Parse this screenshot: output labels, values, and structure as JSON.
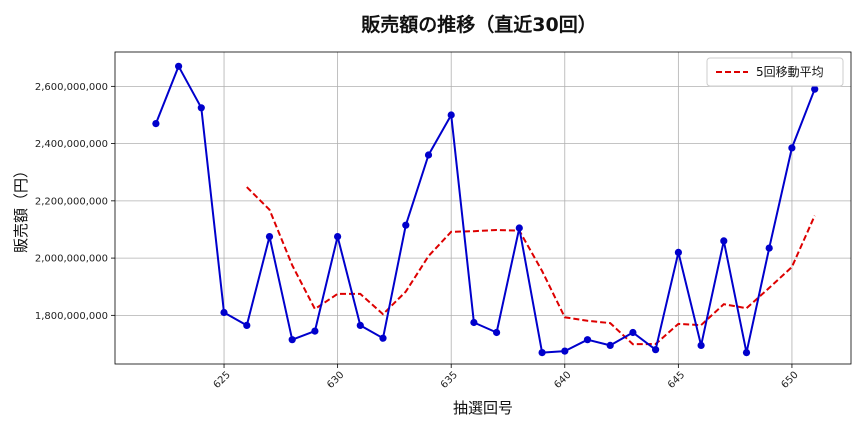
{
  "chart_data": {
    "type": "line",
    "title": "販売額の推移（直近30回）",
    "xlabel": "抽選回号",
    "ylabel": "販売額（円）",
    "xlim": [
      620.2,
      652.6
    ],
    "ylim": [
      1630000000,
      2720000000
    ],
    "x_ticks": [
      625,
      630,
      635,
      640,
      645,
      650
    ],
    "y_ticks": [
      1800000000,
      2000000000,
      2200000000,
      2400000000,
      2600000000
    ],
    "y_tick_labels": [
      "1,800,000,000",
      "2,000,000,000",
      "2,200,000,000",
      "2,400,000,000",
      "2,600,000,000"
    ],
    "grid": true,
    "legend_position": "top-right",
    "series": [
      {
        "color": "#0000cc",
        "style": "solid-with-markers",
        "x": [
          622,
          623,
          624,
          625,
          626,
          627,
          628,
          629,
          630,
          631,
          632,
          633,
          634,
          635,
          636,
          637,
          638,
          639,
          640,
          641,
          642,
          643,
          644,
          645,
          646,
          647,
          648,
          649,
          650,
          651
        ],
        "values": [
          2470000000,
          2670000000,
          2525000000,
          1810000000,
          1765000000,
          2075000000,
          1715000000,
          1745000000,
          2075000000,
          1765000000,
          1720000000,
          2115000000,
          2360000000,
          2500000000,
          1775000000,
          1740000000,
          2105000000,
          1670000000,
          1675000000,
          1715000000,
          1695000000,
          1740000000,
          1680000000,
          2020000000,
          1695000000,
          2060000000,
          1670000000,
          2035000000,
          2385000000,
          2590000000
        ]
      },
      {
        "name": "5回移動平均",
        "color": "#dd0000",
        "style": "dashed",
        "x": [
          626,
          627,
          628,
          629,
          630,
          631,
          632,
          633,
          634,
          635,
          636,
          637,
          638,
          639,
          640,
          641,
          642,
          643,
          644,
          645,
          646,
          647,
          648,
          649,
          650,
          651
        ],
        "values": [
          2248000000,
          2169000000,
          1975000000,
          1822000000,
          1875000000,
          1875000000,
          1804000000,
          1883000000,
          2007000000,
          2092000000,
          2094000000,
          2098000000,
          2096000000,
          1955000000,
          1793000000,
          1781000000,
          1773000000,
          1699000000,
          1700000000,
          1770000000,
          1766000000,
          1839000000,
          1825000000,
          1896000000,
          1969000000,
          2148000000
        ]
      }
    ]
  }
}
